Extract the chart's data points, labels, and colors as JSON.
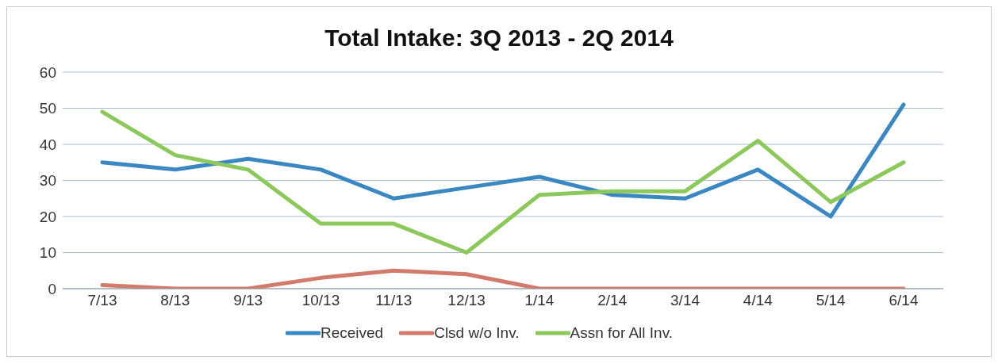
{
  "chart_data": {
    "type": "line",
    "title": "Total Intake: 3Q 2013 - 2Q 2014",
    "categories": [
      "7/13",
      "8/13",
      "9/13",
      "10/13",
      "11/13",
      "12/13",
      "1/14",
      "2/14",
      "3/14",
      "4/14",
      "5/14",
      "6/14"
    ],
    "series": [
      {
        "name": "Received",
        "color": "#3b87c2",
        "values": [
          35,
          33,
          36,
          33,
          25,
          28,
          31,
          26,
          25,
          33,
          20,
          51
        ]
      },
      {
        "name": "Clsd w/o Inv.",
        "color": "#d27a6c",
        "values": [
          1,
          0,
          0,
          3,
          5,
          4,
          0,
          0,
          0,
          0,
          0,
          0
        ]
      },
      {
        "name": "Assn for All Inv.",
        "color": "#8dc85c",
        "values": [
          49,
          37,
          33,
          18,
          18,
          10,
          26,
          27,
          27,
          41,
          24,
          35
        ]
      }
    ],
    "ylim": [
      0,
      60
    ],
    "yticks": [
      0,
      10,
      20,
      30,
      40,
      50,
      60
    ],
    "grid": "y",
    "legend": "bottom",
    "marker": "none",
    "line_style": "solid"
  }
}
